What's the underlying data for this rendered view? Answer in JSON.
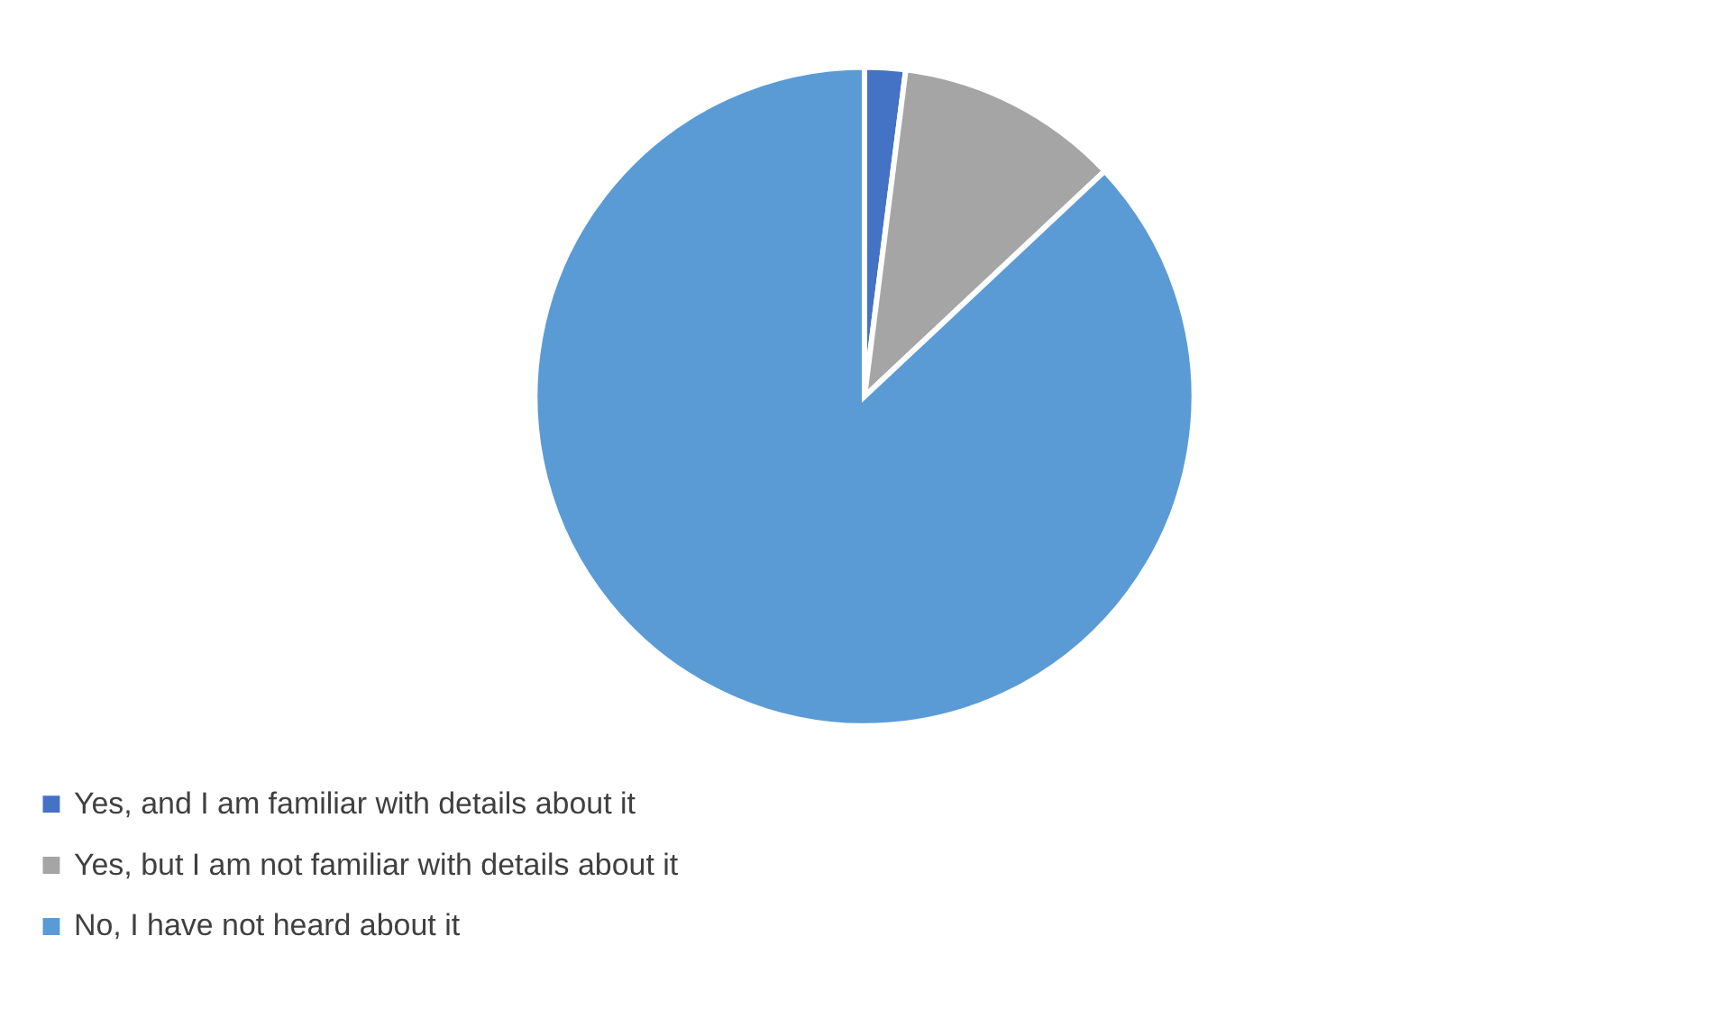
{
  "chart_data": {
    "type": "pie",
    "categories": [
      "Yes, and I am familiar with details about it",
      "Yes, but I am not familiar with details about it",
      "No, I have not heard about it"
    ],
    "values": [
      2,
      11,
      87
    ],
    "colors": [
      "#4472c4",
      "#a5a5a5",
      "#5b9bd5"
    ],
    "legend": "bottom"
  }
}
